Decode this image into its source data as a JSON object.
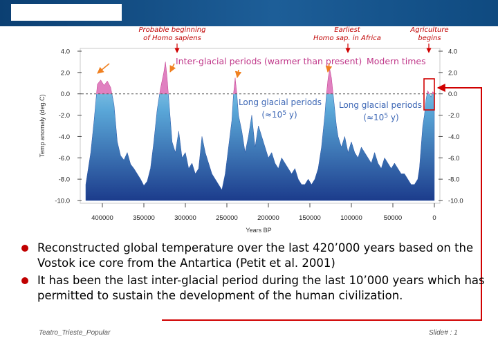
{
  "slide": {
    "bullets": [
      "Reconstructed global temperature over the last 420’000 years based on the Vostok ice core from the Antartica (Petit et al. 2001)",
      "It has been the last inter-glacial period during the last 10’000 years which has permitted to sustain the development of the human civilization."
    ],
    "footer_left": "Teatro_Trieste_Popular",
    "footer_right": "Slide# : 1"
  },
  "callouts": {
    "sapiens_line1": "Probable beginning",
    "sapiens_line2": "of Homo sapiens",
    "africa_line1": "Earliest",
    "africa_line2": "Homo sap. in Africa",
    "agri_line1": "Agriculture",
    "agri_line2": "begins"
  },
  "colors": {
    "accent": "#c00000",
    "topbar": "#1d5e98",
    "interglacial": "#e080c0",
    "glacial_top": "#a8dcf0",
    "glacial_bottom": "#1c3c8c"
  },
  "chart_data": {
    "type": "area",
    "xlabel": "Years BP",
    "ylabel": "Temp anomaly (deg.C)",
    "xlim": [
      420000,
      0
    ],
    "ylim": [
      -10,
      4
    ],
    "x_ticks": [
      400000,
      350000,
      300000,
      250000,
      200000,
      150000,
      100000,
      50000,
      0
    ],
    "x_tick_labels": [
      "400000",
      "350000",
      "300000",
      "250000",
      "200000",
      "150000",
      "100000",
      "50000",
      "0"
    ],
    "y_ticks": [
      4,
      2,
      0,
      -2,
      -4,
      -6,
      -8,
      -10
    ],
    "y_tick_labels": [
      "4.0",
      "2.0",
      "0.0",
      "-2.0",
      "-4.0",
      "-6.0",
      "-8.0",
      "-10.0"
    ],
    "zero_line": "dashed",
    "annotations": {
      "interglacial": "Inter-glacial periods (warmer than present)",
      "modern": "Modern times",
      "glacial1_line1": "Long glacial periods",
      "glacial1_line2": "(≈10",
      "glacial1_exp": "5",
      "glacial1_unit": " y)",
      "glacial2_line1": "Long glacial periods",
      "glacial2_line2": "(≈10",
      "glacial2_exp": "5",
      "glacial2_unit": " y)"
    },
    "series": [
      {
        "x": [
          420000,
          414000,
          410000,
          406000,
          402000,
          398000,
          394000,
          390000,
          386000,
          382000,
          378000,
          374000,
          370000,
          366000,
          362000,
          358000,
          354000,
          350000,
          346000,
          342000,
          338000,
          334000,
          330000,
          326000,
          324000,
          322000,
          320000,
          318000,
          316000,
          312000,
          308000,
          304000,
          300000,
          296000,
          292000,
          288000,
          284000,
          280000,
          276000,
          272000,
          268000,
          264000,
          260000,
          256000,
          252000,
          248000,
          244000,
          242000,
          240000,
          238000,
          236000,
          232000,
          228000,
          224000,
          220000,
          216000,
          212000,
          208000,
          204000,
          200000,
          196000,
          192000,
          188000,
          184000,
          180000,
          176000,
          172000,
          168000,
          164000,
          160000,
          156000,
          152000,
          148000,
          144000,
          140000,
          136000,
          132000,
          130000,
          128000,
          126000,
          124000,
          122000,
          120000,
          118000,
          116000,
          112000,
          108000,
          104000,
          100000,
          96000,
          92000,
          88000,
          84000,
          80000,
          76000,
          72000,
          68000,
          64000,
          60000,
          56000,
          52000,
          48000,
          44000,
          40000,
          36000,
          32000,
          28000,
          24000,
          20000,
          18000,
          16000,
          14000,
          12000,
          10000,
          8000,
          6000,
          4000,
          2000,
          0
        ],
        "y": [
          -8.5,
          -5.5,
          -2.5,
          0.9,
          1.3,
          0.8,
          1.2,
          0.6,
          -1.0,
          -4.5,
          -5.8,
          -6.2,
          -5.5,
          -6.6,
          -7.0,
          -7.5,
          -8.0,
          -8.6,
          -8.2,
          -7.0,
          -4.5,
          -1.5,
          0.5,
          2.0,
          3.0,
          1.5,
          -0.5,
          -2.5,
          -4.5,
          -5.5,
          -3.5,
          -6.0,
          -5.5,
          -7.0,
          -6.5,
          -7.5,
          -7.0,
          -4.0,
          -5.5,
          -6.5,
          -7.5,
          -8.0,
          -8.5,
          -9.0,
          -7.5,
          -5.0,
          -2.5,
          0.0,
          1.5,
          0.0,
          -2.0,
          -3.5,
          -5.5,
          -4.0,
          -2.0,
          -5.0,
          -3.0,
          -4.0,
          -5.0,
          -6.0,
          -5.5,
          -6.5,
          -7.0,
          -6.0,
          -6.5,
          -7.0,
          -7.5,
          -7.0,
          -8.0,
          -8.5,
          -8.5,
          -8.0,
          -8.5,
          -8.0,
          -7.0,
          -5.0,
          -2.0,
          0.0,
          1.5,
          2.3,
          1.5,
          0.0,
          -1.5,
          -3.0,
          -4.0,
          -5.0,
          -4.0,
          -5.5,
          -4.5,
          -5.5,
          -6.0,
          -5.0,
          -5.5,
          -6.0,
          -6.5,
          -5.5,
          -6.5,
          -7.0,
          -6.0,
          -6.5,
          -7.0,
          -6.5,
          -7.0,
          -7.5,
          -7.5,
          -8.0,
          -8.5,
          -8.5,
          -8.0,
          -7.0,
          -5.0,
          -3.0,
          -2.0,
          -0.5,
          0.3,
          0.0,
          -0.3,
          0.2,
          0.0
        ]
      }
    ]
  }
}
